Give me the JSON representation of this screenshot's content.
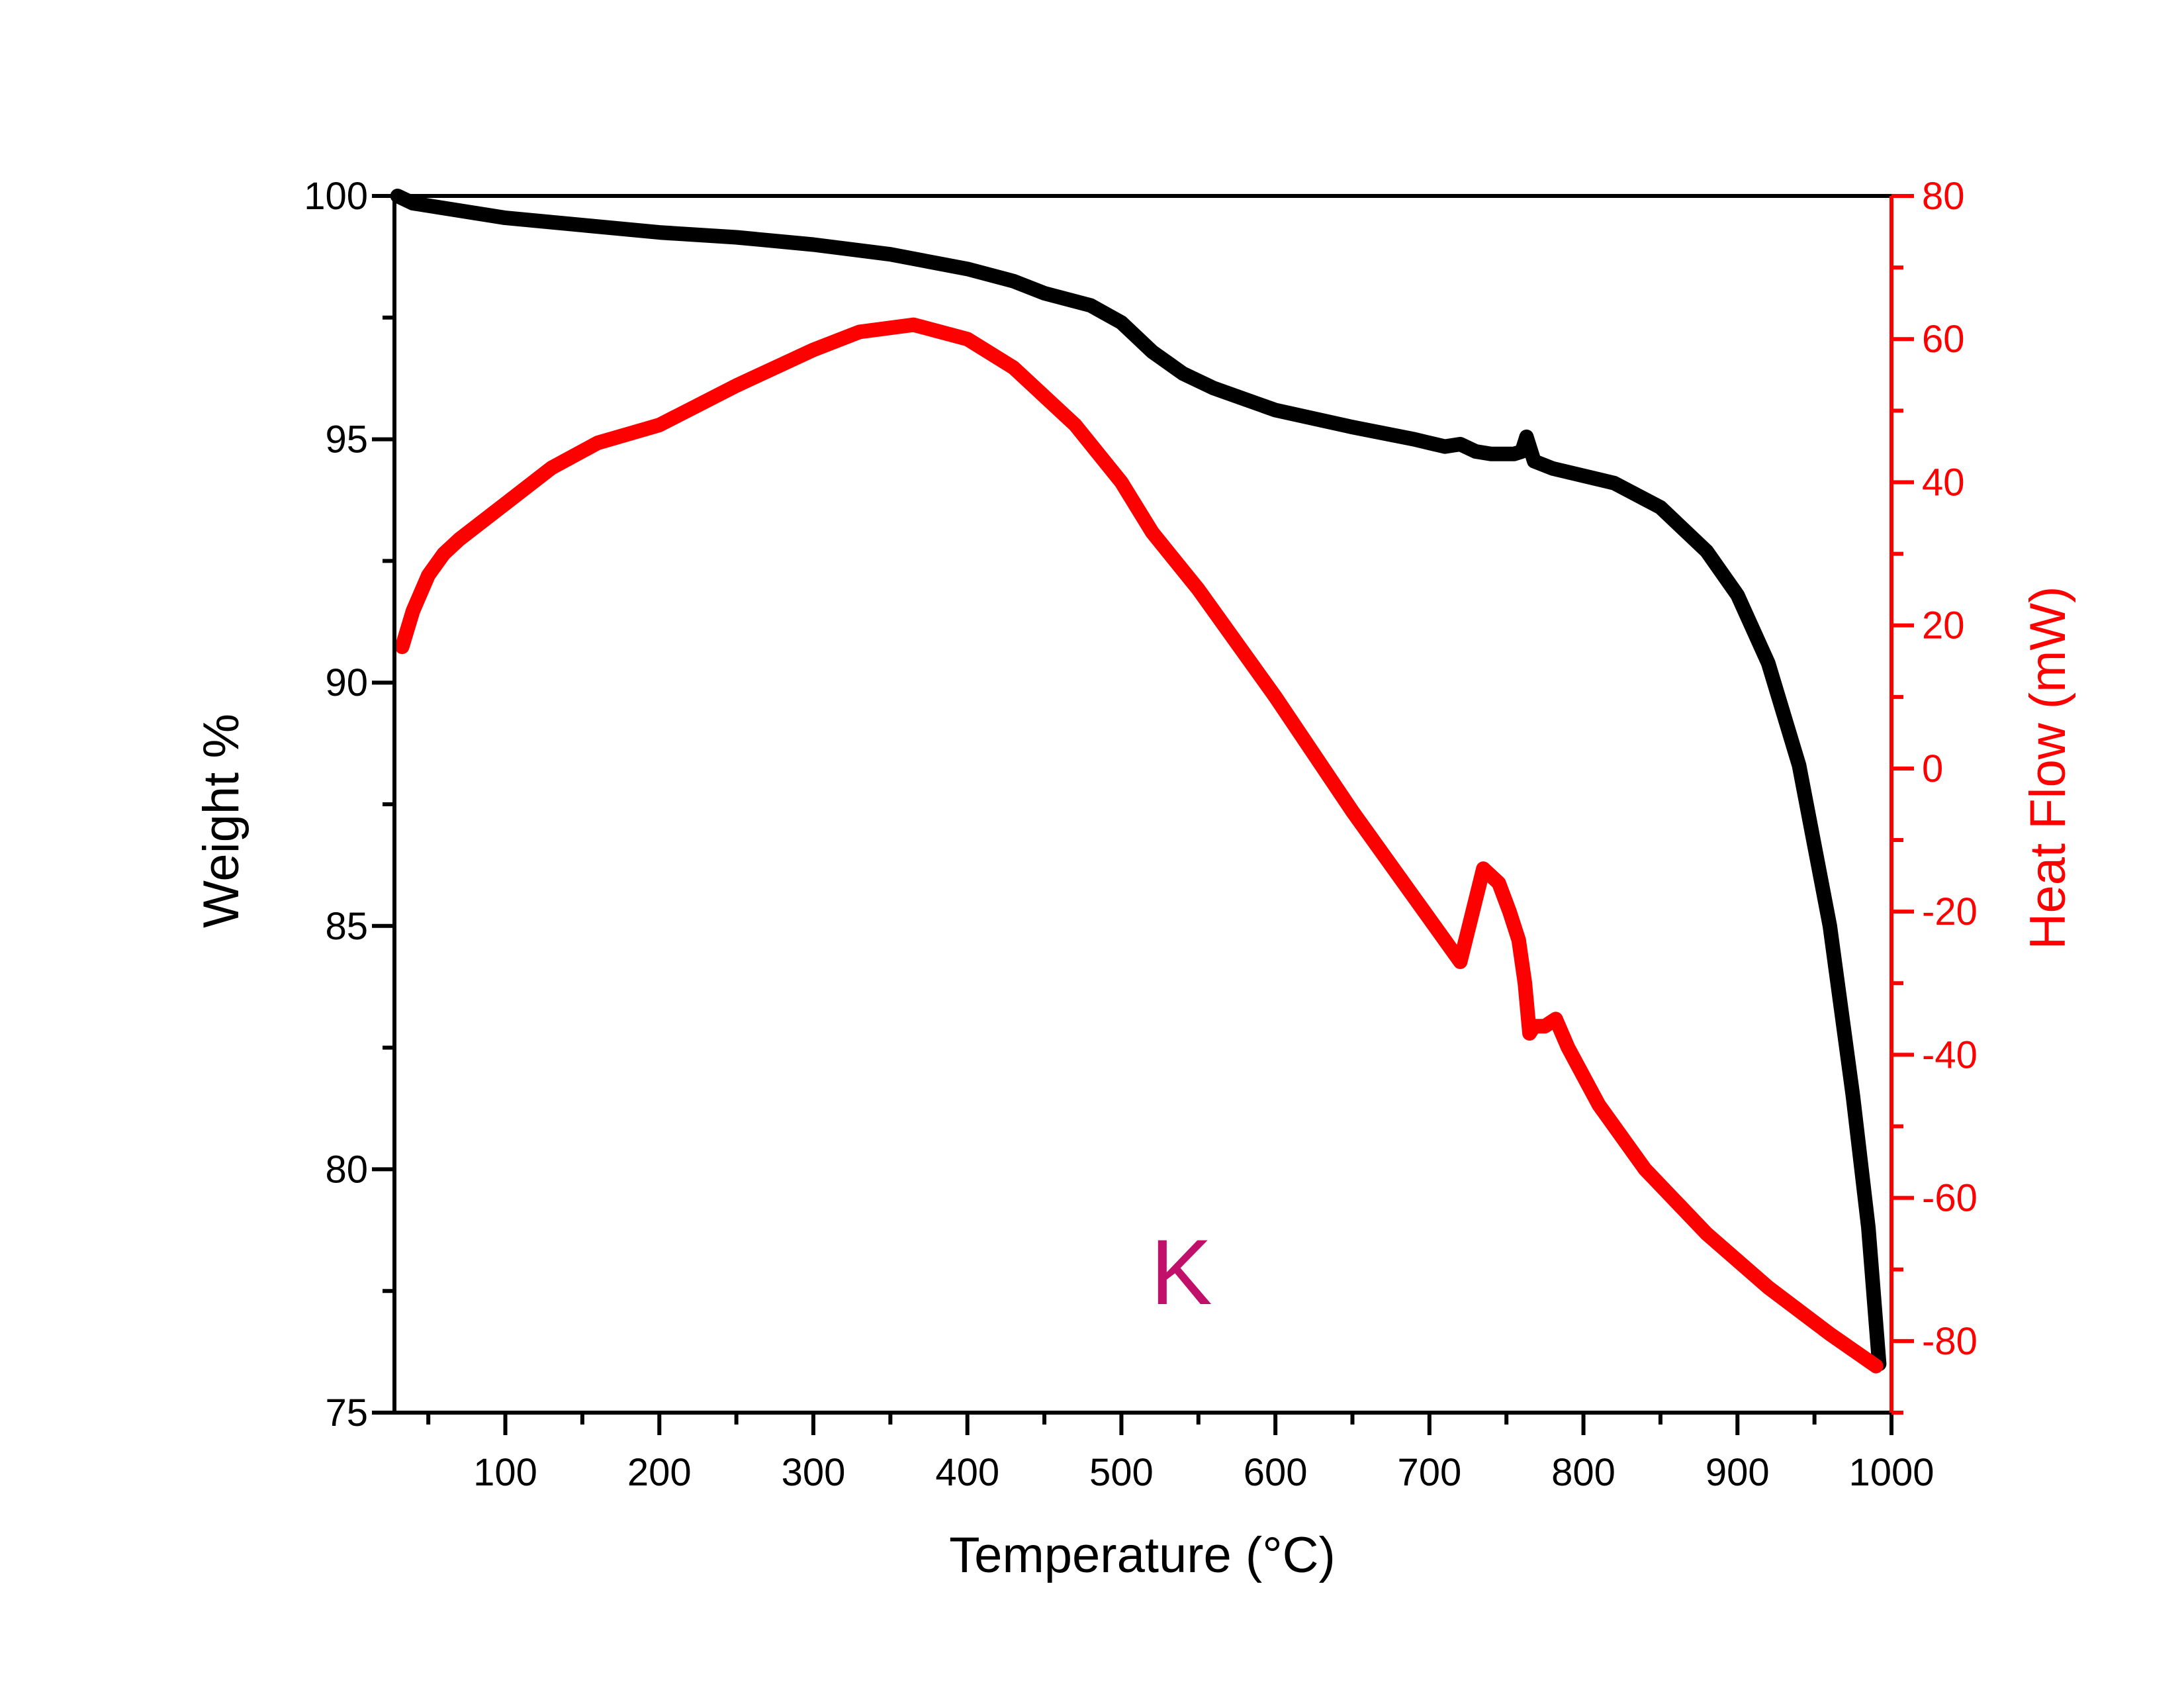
{
  "chart_data": {
    "type": "line",
    "xlabel": "Temperature (°C)",
    "ylabel": "Weight %",
    "y2label": "Heat Flow (mW)",
    "xlim": [
      28,
      1000
    ],
    "ylim": [
      75,
      100
    ],
    "y2lim": [
      -90,
      80
    ],
    "x_ticks": [
      100,
      200,
      300,
      400,
      500,
      600,
      700,
      800,
      900,
      1000
    ],
    "x_tick_labels": [
      "100",
      "200",
      "300",
      "400",
      "500",
      "600",
      "700",
      "800",
      "900",
      "1000"
    ],
    "y_ticks": [
      75,
      80,
      85,
      90,
      95,
      100
    ],
    "y_tick_labels": [
      "75",
      "80",
      "85",
      "90",
      "95",
      "100"
    ],
    "y2_ticks": [
      -80,
      -60,
      -40,
      -20,
      0,
      20,
      40,
      60,
      80
    ],
    "y2_tick_labels": [
      "-80",
      "-60",
      "-40",
      "-20",
      "0",
      "20",
      "40",
      "60",
      "80"
    ],
    "annotation": "K",
    "grid": false,
    "colors": {
      "weight": "#000000",
      "heat_flow": "#ff0000",
      "annotation": "#c0106a",
      "right_axis": "#ff0000",
      "left_axis": "#000000"
    },
    "series": [
      {
        "axis": "left",
        "color": "#000000",
        "x": [
          30,
          40,
          60,
          100,
          150,
          200,
          250,
          300,
          350,
          400,
          430,
          450,
          480,
          500,
          520,
          540,
          560,
          600,
          650,
          690,
          710,
          720,
          730,
          740,
          755,
          760,
          763,
          768,
          780,
          820,
          850,
          880,
          900,
          920,
          940,
          960,
          975,
          985,
          992
        ],
        "values": [
          100,
          99.85,
          99.75,
          99.55,
          99.4,
          99.25,
          99.15,
          99.0,
          98.8,
          98.5,
          98.25,
          98.0,
          97.75,
          97.4,
          96.8,
          96.35,
          96.05,
          95.6,
          95.25,
          95.0,
          94.85,
          94.9,
          94.75,
          94.7,
          94.7,
          94.75,
          95.05,
          94.55,
          94.4,
          94.1,
          93.6,
          92.7,
          91.8,
          90.4,
          88.3,
          85.0,
          81.5,
          78.8,
          76.0
        ]
      },
      {
        "axis": "right",
        "color": "#ff0000",
        "x": [
          33,
          40,
          50,
          60,
          70,
          100,
          130,
          160,
          200,
          250,
          300,
          330,
          365,
          400,
          430,
          470,
          500,
          520,
          550,
          600,
          650,
          690,
          700,
          720,
          735,
          745,
          752,
          758,
          762,
          765,
          768,
          775,
          782,
          790,
          810,
          840,
          880,
          920,
          960,
          990
        ],
        "values": [
          17,
          22,
          27,
          30,
          32,
          37,
          42,
          45.5,
          48,
          53.5,
          58.5,
          61,
          62,
          60,
          56,
          48,
          40,
          33,
          25,
          10,
          -6,
          -18,
          -21,
          -27,
          -14,
          -16,
          -20,
          -24,
          -30,
          -37,
          -36,
          -36,
          -35,
          -39,
          -47,
          -56,
          -65,
          -72.5,
          -79,
          -83.5
        ]
      }
    ]
  }
}
